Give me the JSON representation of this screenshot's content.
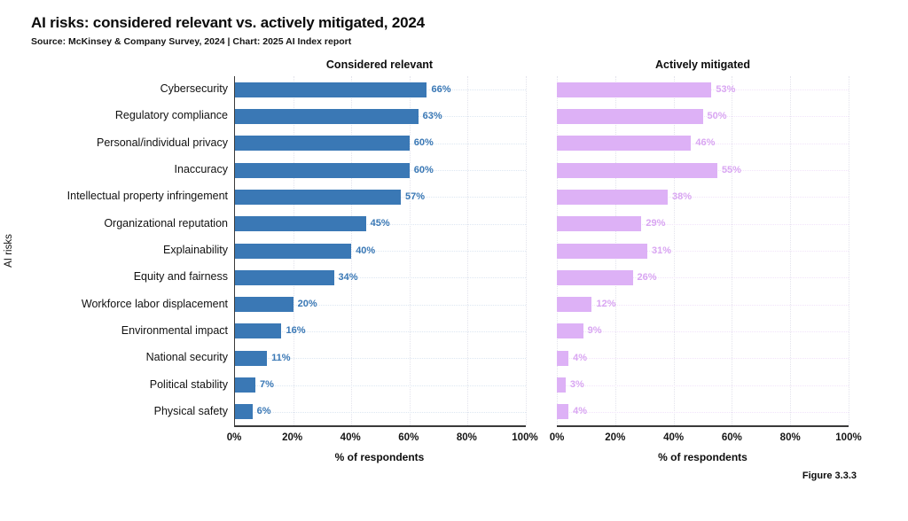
{
  "title": "AI risks: considered relevant vs. actively mitigated, 2024",
  "subtitle": "Source: McKinsey & Company Survey, 2024 | Chart: 2025 AI Index report",
  "figure_label": "Figure 3.3.3",
  "colors": {
    "relevant_bar": "#3A78B5",
    "relevant_value_label": "#3A78B5",
    "relevant_row_grid": "#dde7f2",
    "mitigated_bar": "#DDB1F6",
    "mitigated_value_label": "#D9A6F2",
    "mitigated_row_grid": "#f2e4fa",
    "vertical_grid": "#e3e3ec",
    "axis": "#3a3a3a"
  },
  "x_ticks": [
    "0%",
    "20%",
    "40%",
    "60%",
    "80%",
    "100%"
  ],
  "chart_data": {
    "type": "bar",
    "orientation": "horizontal",
    "title": "AI risks: considered relevant vs. actively mitigated, 2024",
    "xlabel": "% of respondents",
    "ylabel": "AI risks",
    "xlim": [
      0,
      100
    ],
    "grid": "dotted vertical gridlines every 20%, dotted leader line per row",
    "legend_position": "panel titles above each subplot",
    "categories": [
      "Cybersecurity",
      "Regulatory compliance",
      "Personal/individual privacy",
      "Inaccuracy",
      "Intellectual property infringement",
      "Organizational reputation",
      "Explainability",
      "Equity and fairness",
      "Workforce labor displacement",
      "Environmental impact",
      "National security",
      "Political stability",
      "Physical safety"
    ],
    "series": [
      {
        "name": "Considered relevant",
        "values": [
          66,
          63,
          60,
          60,
          57,
          45,
          40,
          34,
          20,
          16,
          11,
          7,
          6
        ],
        "value_suffix": "%"
      },
      {
        "name": "Actively mitigated",
        "values": [
          53,
          50,
          46,
          55,
          38,
          29,
          31,
          26,
          12,
          9,
          4,
          3,
          4
        ],
        "value_suffix": "%"
      }
    ]
  }
}
